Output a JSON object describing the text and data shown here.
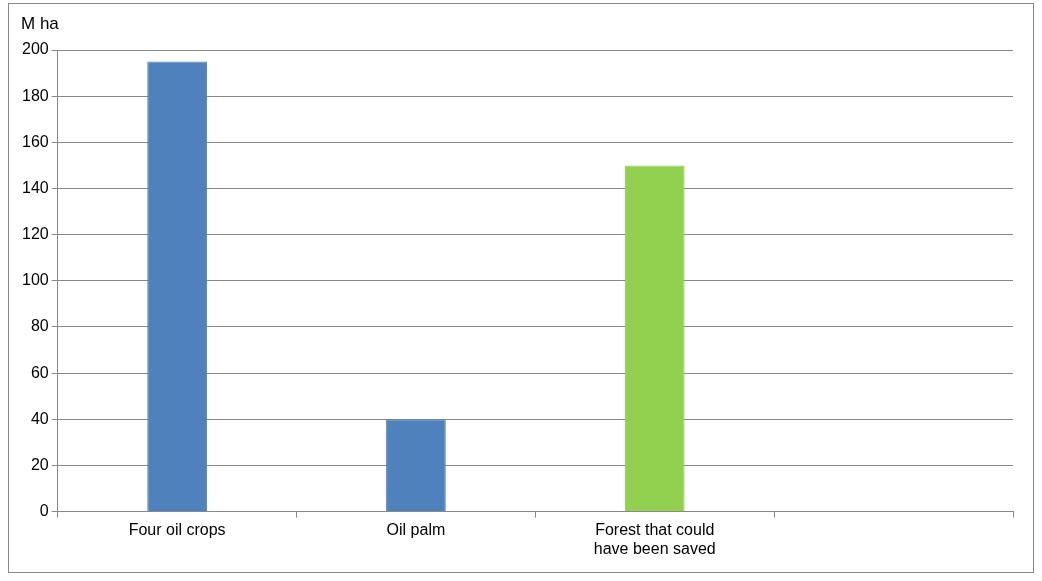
{
  "chart_data": {
    "type": "bar",
    "ylabel": "M ha",
    "categories": [
      "Four oil crops",
      "Oil palm",
      "Forest that could have been saved",
      null
    ],
    "values": [
      195,
      40,
      150,
      null
    ],
    "colors": [
      "#4f81bd",
      "#4f81bd",
      "#92d050",
      "#92d050"
    ],
    "ylim": [
      0,
      200
    ],
    "yticks": [
      0,
      20,
      40,
      60,
      80,
      100,
      120,
      140,
      160,
      180,
      200
    ],
    "grid": "y",
    "legend": false
  }
}
